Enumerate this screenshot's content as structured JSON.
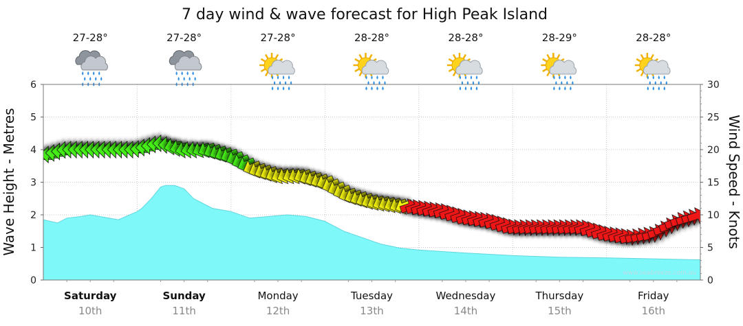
{
  "chart_data": {
    "type": "area",
    "title": "7 day wind & wave forecast for High Peak Island",
    "ylabel_left": "Wave Height - Metres",
    "ylabel_right": "Wind Speed - Knots",
    "ylim_left": [
      0,
      6
    ],
    "ylim_right": [
      0,
      30
    ],
    "left_ticks": [
      "0",
      "1",
      "2",
      "3",
      "4",
      "5",
      "6"
    ],
    "right_ticks": [
      "0",
      "5",
      "10",
      "15",
      "20",
      "25",
      "30"
    ],
    "grid": true,
    "credit": "www.seabreeze.com.au",
    "colors": {
      "wave_fill": "#7ff8fa",
      "wave_line": "#5fd6df",
      "light": "#44ee14",
      "moderate": "#f2f20f",
      "strong": "#ee1212"
    },
    "days": [
      {
        "day": "Saturday",
        "date": "10th",
        "temp": "27-28°",
        "icon": "rain-cloud-icon",
        "bold": true
      },
      {
        "day": "Sunday",
        "date": "11th",
        "temp": "27-28°",
        "icon": "rain-cloud-icon",
        "bold": true
      },
      {
        "day": "Monday",
        "date": "12th",
        "temp": "27-28°",
        "icon": "sun-shower-icon",
        "bold": false
      },
      {
        "day": "Tuesday",
        "date": "13th",
        "temp": "28-28°",
        "icon": "sun-shower-icon",
        "bold": false
      },
      {
        "day": "Wednesday",
        "date": "14th",
        "temp": "28-28°",
        "icon": "sun-shower-icon",
        "bold": false
      },
      {
        "day": "Thursday",
        "date": "15th",
        "temp": "28-29°",
        "icon": "sun-shower-icon",
        "bold": false
      },
      {
        "day": "Friday",
        "date": "16th",
        "temp": "28-28°",
        "icon": "sun-shower-icon",
        "bold": false
      }
    ],
    "wave_height": {
      "t": [
        0,
        0.15,
        0.25,
        0.4,
        0.5,
        0.7,
        0.8,
        1.0,
        1.05,
        1.15,
        1.25,
        1.3,
        1.4,
        1.5,
        1.6,
        1.8,
        1.9,
        2.0,
        2.2,
        2.4,
        2.6,
        2.8,
        3.0,
        3.2,
        3.4,
        3.6,
        3.8,
        4.0,
        4.5,
        5.0,
        5.5,
        6.0,
        6.5,
        7.0
      ],
      "values": [
        1.85,
        1.75,
        1.9,
        1.95,
        2.0,
        1.9,
        1.85,
        2.1,
        2.2,
        2.5,
        2.85,
        2.9,
        2.9,
        2.8,
        2.5,
        2.2,
        2.15,
        2.1,
        1.9,
        1.95,
        2.0,
        1.95,
        1.8,
        1.5,
        1.3,
        1.1,
        0.98,
        0.92,
        0.83,
        0.75,
        0.7,
        0.68,
        0.65,
        0.62
      ]
    },
    "wind": {
      "t": [
        0,
        0.25,
        0.5,
        0.75,
        1.0,
        1.25,
        1.5,
        1.75,
        2.0,
        2.25,
        2.5,
        2.75,
        3.0,
        3.25,
        3.5,
        3.75,
        4.0,
        4.25,
        4.5,
        4.75,
        5.0,
        5.25,
        5.5,
        5.75,
        6.0,
        6.25,
        6.5,
        6.75,
        7.0
      ],
      "knots": [
        19,
        20,
        20,
        20,
        20,
        21,
        20,
        20,
        19,
        17,
        16,
        16,
        15,
        13,
        12,
        11.5,
        11,
        10.5,
        9.5,
        9,
        8,
        8,
        8,
        8,
        7,
        6.5,
        7,
        9,
        10
      ],
      "direction": [
        "W",
        "W",
        "W",
        "W",
        "W",
        "W",
        "WSW",
        "SW",
        "SW",
        "SW",
        "SW",
        "SW",
        "SW",
        "SW",
        "SW",
        "SW",
        "NE",
        "NE",
        "NE",
        "NE",
        "NE",
        "NE",
        "NE",
        "NE",
        "NE",
        "NE",
        "NE",
        "NE",
        "NE"
      ]
    }
  }
}
